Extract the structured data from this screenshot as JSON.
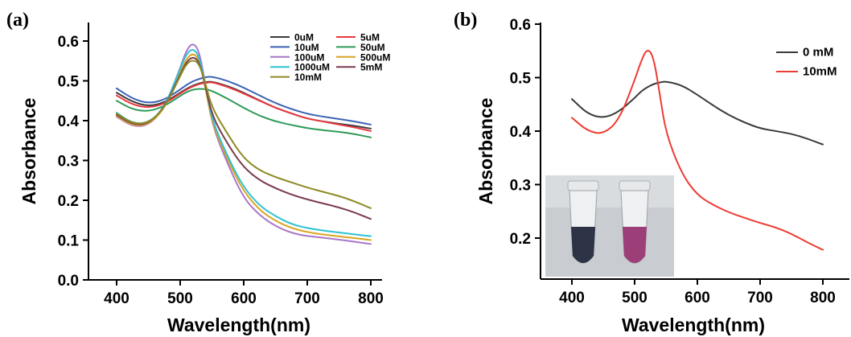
{
  "chart_data": [
    {
      "panel": "(a)",
      "type": "line",
      "xlabel": "Wavelength(nm)",
      "ylabel": "Absorbance",
      "xlim": [
        400,
        800
      ],
      "ylim": [
        0.0,
        0.65
      ],
      "xticks": [
        400,
        500,
        600,
        700,
        800
      ],
      "yticks": [
        0.0,
        0.1,
        0.2,
        0.3,
        0.4,
        0.5,
        0.6
      ],
      "ytick_labels": [
        "0.0",
        "0.1",
        "0.2",
        "0.3",
        "0.4",
        "0.5",
        "0.6"
      ],
      "grid": false,
      "legend_position": "top-right",
      "x": [
        400,
        425,
        450,
        475,
        500,
        510,
        520,
        530,
        540,
        550,
        575,
        600,
        625,
        650,
        675,
        700,
        725,
        750,
        775,
        800
      ],
      "series": [
        {
          "name": "0uM",
          "color": "#3a3a3a",
          "values": [
            0.47,
            0.447,
            0.436,
            0.445,
            0.47,
            0.48,
            0.488,
            0.494,
            0.497,
            0.498,
            0.487,
            0.47,
            0.451,
            0.432,
            0.418,
            0.405,
            0.398,
            0.392,
            0.387,
            0.38
          ]
        },
        {
          "name": "5uM",
          "color": "#e8393f",
          "values": [
            0.463,
            0.44,
            0.432,
            0.442,
            0.468,
            0.478,
            0.486,
            0.492,
            0.495,
            0.497,
            0.485,
            0.468,
            0.45,
            0.432,
            0.418,
            0.405,
            0.398,
            0.39,
            0.383,
            0.374
          ]
        },
        {
          "name": "10uM",
          "color": "#3b62b5",
          "values": [
            0.481,
            0.455,
            0.443,
            0.452,
            0.478,
            0.49,
            0.499,
            0.505,
            0.509,
            0.511,
            0.5,
            0.483,
            0.463,
            0.444,
            0.429,
            0.417,
            0.41,
            0.404,
            0.398,
            0.39
          ]
        },
        {
          "name": "50uM",
          "color": "#2e9b5a",
          "values": [
            0.45,
            0.428,
            0.423,
            0.436,
            0.462,
            0.472,
            0.478,
            0.48,
            0.479,
            0.475,
            0.455,
            0.432,
            0.412,
            0.398,
            0.389,
            0.381,
            0.376,
            0.372,
            0.366,
            0.358
          ]
        },
        {
          "name": "100uM",
          "color": "#a877c9",
          "values": [
            0.41,
            0.385,
            0.388,
            0.43,
            0.532,
            0.578,
            0.596,
            0.575,
            0.49,
            0.39,
            0.29,
            0.205,
            0.162,
            0.135,
            0.118,
            0.11,
            0.106,
            0.101,
            0.096,
            0.09
          ]
        },
        {
          "name": "500uM",
          "color": "#d9a521",
          "values": [
            0.412,
            0.387,
            0.39,
            0.428,
            0.52,
            0.556,
            0.57,
            0.554,
            0.48,
            0.395,
            0.3,
            0.222,
            0.175,
            0.148,
            0.13,
            0.12,
            0.114,
            0.109,
            0.105,
            0.1
          ]
        },
        {
          "name": "1000uM",
          "color": "#2ec2d3",
          "values": [
            0.42,
            0.393,
            0.394,
            0.432,
            0.53,
            0.568,
            0.582,
            0.562,
            0.488,
            0.402,
            0.308,
            0.232,
            0.186,
            0.16,
            0.14,
            0.13,
            0.124,
            0.119,
            0.114,
            0.11
          ]
        },
        {
          "name": "5mM",
          "color": "#7a3b4c",
          "values": [
            0.415,
            0.39,
            0.392,
            0.432,
            0.515,
            0.548,
            0.561,
            0.548,
            0.486,
            0.412,
            0.34,
            0.282,
            0.25,
            0.23,
            0.214,
            0.202,
            0.192,
            0.182,
            0.169,
            0.153
          ]
        },
        {
          "name": "10mM",
          "color": "#8f8a25",
          "values": [
            0.418,
            0.392,
            0.394,
            0.43,
            0.512,
            0.543,
            0.553,
            0.543,
            0.492,
            0.432,
            0.365,
            0.305,
            0.275,
            0.258,
            0.245,
            0.232,
            0.221,
            0.211,
            0.197,
            0.18
          ]
        }
      ]
    },
    {
      "panel": "(b)",
      "type": "line",
      "xlabel": "Wavelength(nm)",
      "ylabel": "Absorbance",
      "xlim": [
        350,
        830
      ],
      "ylim": [
        0.15,
        0.6
      ],
      "xticks": [
        400,
        500,
        600,
        700,
        800
      ],
      "yticks": [
        0.2,
        0.3,
        0.4,
        0.5,
        0.6
      ],
      "ytick_labels": [
        "0.2",
        "0.3",
        "0.4",
        "0.5",
        "0.6"
      ],
      "grid": false,
      "legend_position": "top-right",
      "x": [
        400,
        425,
        450,
        475,
        500,
        510,
        520,
        530,
        540,
        550,
        575,
        600,
        625,
        650,
        675,
        700,
        725,
        750,
        775,
        800
      ],
      "series": [
        {
          "name": "0 mM",
          "color": "#3a3a3a",
          "values": [
            0.46,
            0.432,
            0.424,
            0.436,
            0.462,
            0.474,
            0.482,
            0.488,
            0.491,
            0.493,
            0.486,
            0.468,
            0.448,
            0.43,
            0.416,
            0.405,
            0.4,
            0.395,
            0.386,
            0.375
          ]
        },
        {
          "name": "10mM",
          "color": "#ee3b32",
          "values": [
            0.425,
            0.4,
            0.394,
            0.42,
            0.495,
            0.53,
            0.555,
            0.54,
            0.47,
            0.395,
            0.32,
            0.28,
            0.262,
            0.248,
            0.238,
            0.228,
            0.22,
            0.208,
            0.192,
            0.178
          ]
        }
      ],
      "inset": {
        "description_icon": "vial-photo",
        "vial_colors": [
          "#2b3344",
          "#9c3e78"
        ]
      }
    }
  ]
}
